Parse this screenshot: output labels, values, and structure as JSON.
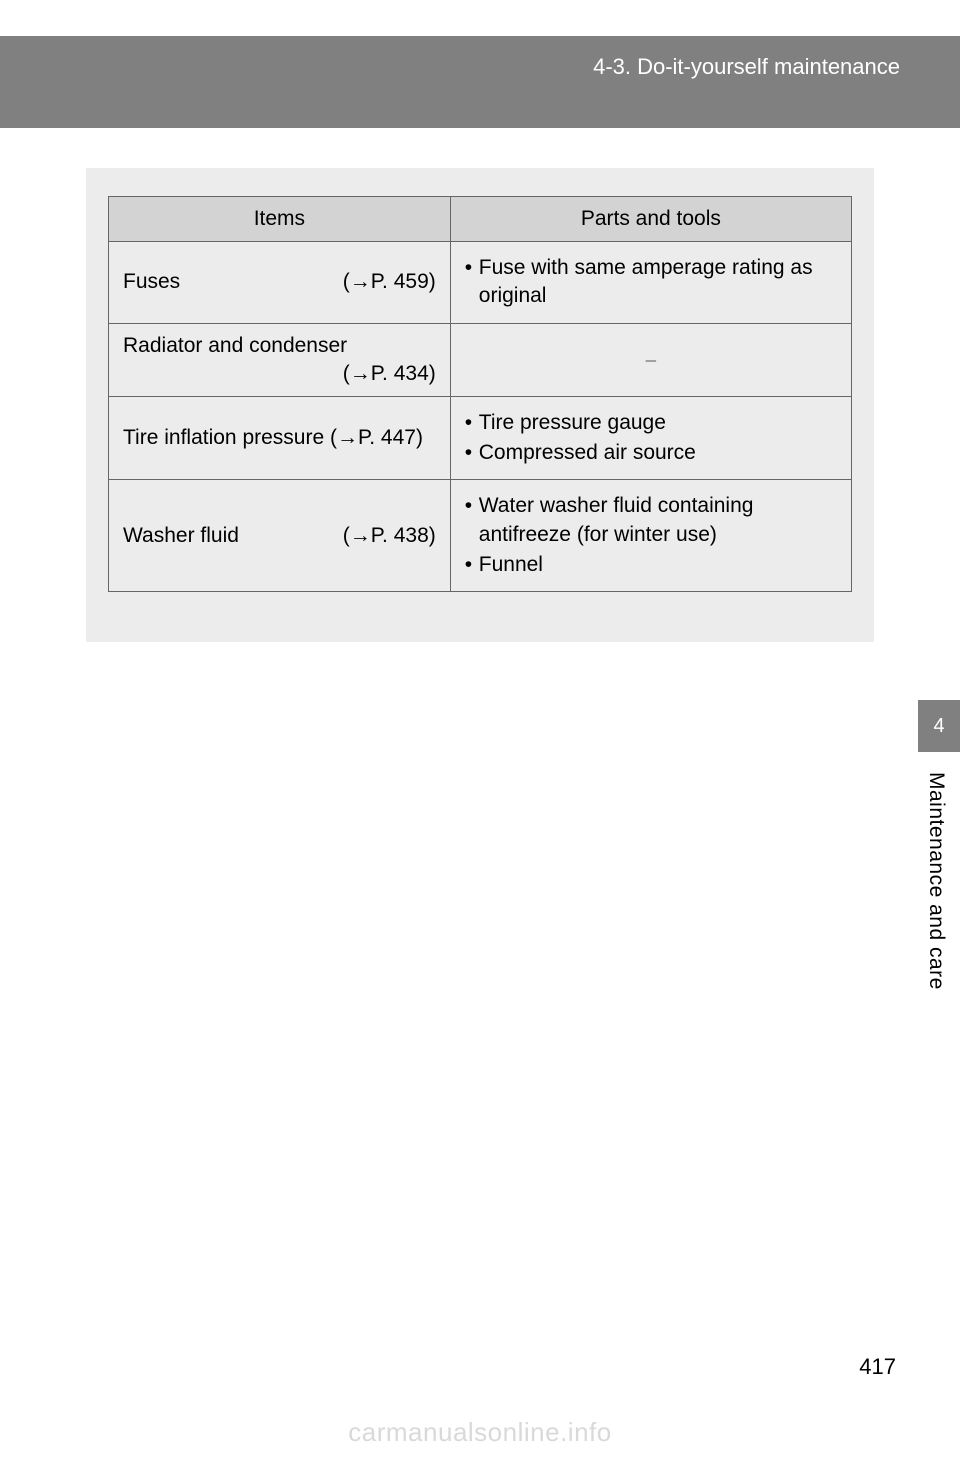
{
  "header": {
    "section_label": "4-3. Do-it-yourself maintenance"
  },
  "table": {
    "columns": [
      "Items",
      "Parts and tools"
    ],
    "rows": [
      {
        "item_label": "Fuses",
        "item_ref": "(→P. 459)",
        "stacked": false,
        "tools": [
          "Fuse with same amperage rating as original"
        ],
        "dash": false
      },
      {
        "item_label": "Radiator and condenser",
        "item_ref": "(→P. 434)",
        "stacked": true,
        "tools": [],
        "dash": true
      },
      {
        "item_label": "Tire inflation pressure (→P. 447)",
        "item_ref": "",
        "stacked": false,
        "tools": [
          "Tire pressure gauge",
          "Compressed air source"
        ],
        "dash": false
      },
      {
        "item_label": "Washer fluid",
        "item_ref": "(→P. 438)",
        "stacked": false,
        "tools": [
          "Water washer fluid containing antifreeze (for winter use)",
          "Funnel"
        ],
        "dash": false
      }
    ],
    "dash_symbol": "⎯"
  },
  "sidebar": {
    "chapter_number": "4",
    "chapter_title": "Maintenance and care"
  },
  "footer": {
    "page_number": "417",
    "watermark": "carmanualsonline.info"
  }
}
